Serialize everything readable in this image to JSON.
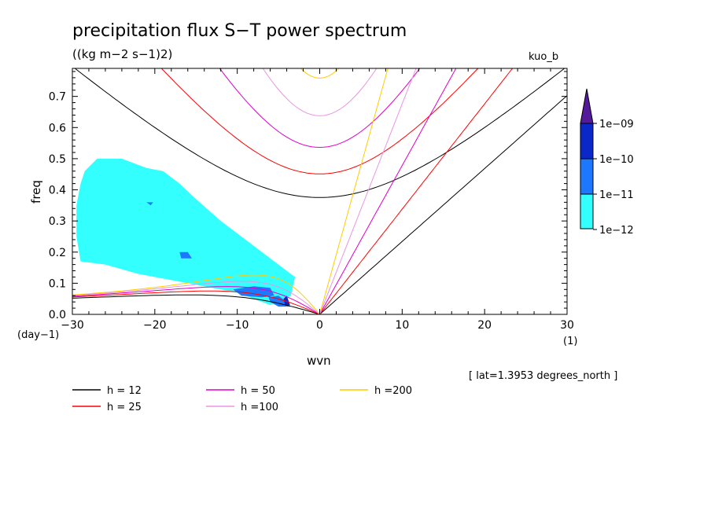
{
  "chart_data": {
    "type": "heatmap",
    "title": "precipitation flux S−T power spectrum",
    "subtitle": "((kg m−2 s−1)2)",
    "corner_label": "kuo_b",
    "xlabel": "wvn",
    "ylabel": "freq",
    "x_unit": "(1)",
    "y_unit": "(day−1)",
    "xlim": [
      -30,
      30
    ],
    "ylim": [
      0,
      0.79
    ],
    "x_ticks": [
      -30,
      -20,
      -10,
      0,
      10,
      20,
      30
    ],
    "x_tick_labels": [
      "−30",
      "−20",
      "−10",
      "0",
      "10",
      "20",
      "30"
    ],
    "y_ticks": [
      0.0,
      0.1,
      0.2,
      0.3,
      0.4,
      0.5,
      0.6,
      0.7
    ],
    "y_tick_labels": [
      "0.0",
      "0.1",
      "0.2",
      "0.3",
      "0.4",
      "0.5",
      "0.6",
      "0.7"
    ],
    "annotation": "[ lat=1.3953 degrees_north ]",
    "colorbar": {
      "levels": [
        "1e−12",
        "1e−11",
        "1e−10",
        "1e−09"
      ],
      "colors": [
        "#33ffff",
        "#1e78ff",
        "#0a28c8",
        "#551a9b"
      ]
    },
    "contour_regions": [
      {
        "level": 0,
        "polygon": [
          [
            -28.5,
            0.46
          ],
          [
            -27,
            0.5
          ],
          [
            -24,
            0.5
          ],
          [
            -21,
            0.47
          ],
          [
            -19,
            0.46
          ],
          [
            -17,
            0.42
          ],
          [
            -15,
            0.37
          ],
          [
            -12,
            0.3
          ],
          [
            -9,
            0.24
          ],
          [
            -6,
            0.18
          ],
          [
            -3,
            0.12
          ],
          [
            -3.5,
            0.06
          ],
          [
            -6,
            0.03
          ],
          [
            -10,
            0.07
          ],
          [
            -14,
            0.09
          ],
          [
            -18,
            0.11
          ],
          [
            -22,
            0.13
          ],
          [
            -26,
            0.16
          ],
          [
            -29,
            0.17
          ],
          [
            -29.5,
            0.25
          ],
          [
            -29.5,
            0.35
          ],
          [
            -29,
            0.42
          ]
        ]
      },
      {
        "level": 1,
        "polygon": [
          [
            -10.5,
            0.08
          ],
          [
            -8,
            0.09
          ],
          [
            -6,
            0.085
          ],
          [
            -5.5,
            0.06
          ],
          [
            -7,
            0.055
          ],
          [
            -9.5,
            0.06
          ]
        ]
      },
      {
        "level": 1,
        "polygon": [
          [
            -6.2,
            0.055
          ],
          [
            -5,
            0.06
          ],
          [
            -4,
            0.04
          ],
          [
            -3.5,
            0.025
          ],
          [
            -5,
            0.025
          ],
          [
            -6,
            0.04
          ]
        ]
      },
      {
        "level": 1,
        "polygon": [
          [
            -17,
            0.2
          ],
          [
            -16,
            0.2
          ],
          [
            -15.5,
            0.18
          ],
          [
            -16.8,
            0.18
          ]
        ]
      },
      {
        "level": 1,
        "polygon": [
          [
            -21,
            0.36
          ],
          [
            -20.2,
            0.36
          ],
          [
            -20.5,
            0.35
          ]
        ]
      },
      {
        "level": 2,
        "polygon": [
          [
            -4.4,
            0.05
          ],
          [
            -4,
            0.06
          ],
          [
            -3.6,
            0.03
          ],
          [
            -4.2,
            0.03
          ]
        ]
      }
    ],
    "series": [
      {
        "name": "h = 12",
        "color": "#000000"
      },
      {
        "name": "h = 25",
        "color": "#ff0000"
      },
      {
        "name": "h = 50",
        "color": "#e000c8"
      },
      {
        "name": "h =100",
        "color": "#e896e0"
      },
      {
        "name": "h =200",
        "color": "#ffcc00"
      }
    ],
    "equivalent_depths": [
      12,
      25,
      50,
      100,
      200
    ]
  }
}
